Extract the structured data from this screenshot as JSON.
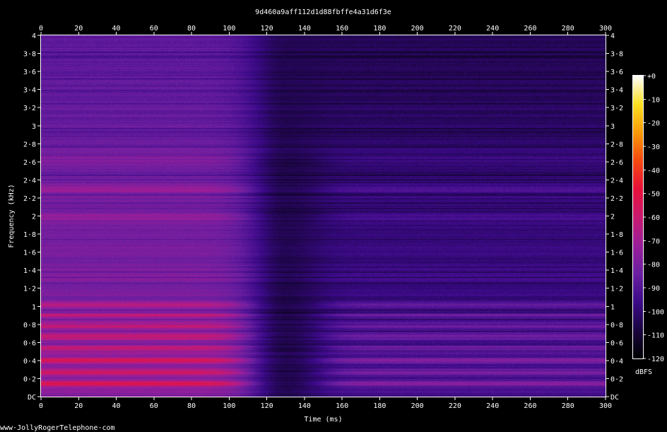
{
  "chart_data": {
    "type": "heatmap",
    "title": "9d460a9aff112d1d88fbffe4a31d6f3e",
    "xlabel": "Time (ms)",
    "ylabel": "Frequency (kHz)",
    "xlim": [
      0,
      300
    ],
    "ylim": [
      0,
      4
    ],
    "x_ticks": [
      "0",
      "20",
      "40",
      "60",
      "80",
      "100",
      "120",
      "140",
      "160",
      "180",
      "200",
      "220",
      "240",
      "260",
      "280",
      "300"
    ],
    "x_tick_values": [
      0,
      20,
      40,
      60,
      80,
      100,
      120,
      140,
      160,
      180,
      200,
      220,
      240,
      260,
      280,
      300
    ],
    "y_ticks": [
      "DC",
      "0·2",
      "0·4",
      "0·6",
      "0·8",
      "1",
      "1·2",
      "1·4",
      "1·6",
      "1·8",
      "2",
      "2·2",
      "2·4",
      "2·6",
      "2·8",
      "3",
      "3·2",
      "3·4",
      "3·6",
      "3·8",
      "4"
    ],
    "y_tick_values": [
      0,
      0.2,
      0.4,
      0.6,
      0.8,
      1,
      1.2,
      1.4,
      1.6,
      1.8,
      2,
      2.2,
      2.4,
      2.6,
      2.8,
      3,
      3.2,
      3.4,
      3.6,
      3.8,
      4
    ],
    "colorbar": {
      "label": "dBFS",
      "range": [
        -120,
        0
      ],
      "ticks": [
        "+0",
        "-10",
        "-20",
        "-30",
        "-40",
        "-50",
        "-60",
        "-70",
        "-80",
        "-90",
        "-100",
        "-110",
        "-120"
      ],
      "tick_values": [
        0,
        -10,
        -20,
        -30,
        -40,
        -50,
        -60,
        -70,
        -80,
        -90,
        -100,
        -110,
        -120
      ],
      "colors": [
        "#000000",
        "#1a0540",
        "#3c0a8a",
        "#6a1fa0",
        "#9a1e9a",
        "#c81a70",
        "#e8103a",
        "#f54a10",
        "#f99a08",
        "#fbe020",
        "#ffffff"
      ]
    },
    "harmonics_khz": [
      0.14,
      0.27,
      0.4,
      0.53,
      0.66,
      0.78,
      0.9,
      1.02,
      2.0,
      2.3,
      2.6
    ],
    "gap_ms": [
      110,
      150
    ],
    "level_start_dbfs": -58,
    "level_end_dbfs": -75,
    "level_gap_dbfs": -105
  },
  "footer": {
    "credit": "www·JollyRogerTelephone·com"
  }
}
